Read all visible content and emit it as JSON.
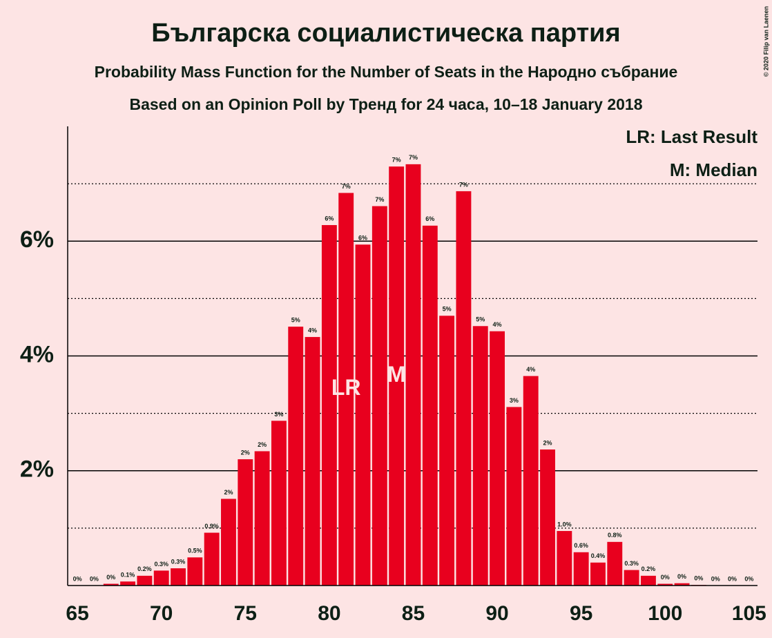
{
  "chart_data": {
    "type": "bar",
    "title": "Българска социалистическа партия",
    "subtitle": "Probability Mass Function for the Number of Seats in the Народно събрание",
    "subtitle2": "Based on an Opinion Poll by Тренд for 24 часа, 10–18 January 2018",
    "copyright": "© 2020 Filip van Laenen",
    "legend": [
      "LR: Last Result",
      "M: Median"
    ],
    "legend_position": "top-right",
    "annotations": [
      {
        "x": 81,
        "text": "LR"
      },
      {
        "x": 84,
        "text": "M"
      }
    ],
    "x": [
      65,
      66,
      67,
      68,
      69,
      70,
      71,
      72,
      73,
      74,
      75,
      76,
      77,
      78,
      79,
      80,
      81,
      82,
      83,
      84,
      85,
      86,
      87,
      88,
      89,
      90,
      91,
      92,
      93,
      94,
      95,
      96,
      97,
      98,
      99,
      100,
      101,
      102,
      103,
      104,
      105
    ],
    "values": [
      0,
      0,
      0.03,
      0.07,
      0.17,
      0.26,
      0.3,
      0.49,
      0.92,
      1.51,
      2.2,
      2.34,
      2.87,
      4.51,
      4.33,
      6.28,
      6.84,
      5.94,
      6.61,
      7.3,
      7.34,
      6.27,
      4.7,
      6.87,
      4.52,
      4.43,
      3.11,
      3.65,
      2.37,
      0.95,
      0.58,
      0.4,
      0.76,
      0.27,
      0.17,
      0.03,
      0.04,
      0.01,
      0,
      0,
      0
    ],
    "value_labels": [
      "0%",
      "0%",
      "0%",
      "0.1%",
      "0.2%",
      "0.3%",
      "0.3%",
      "0.5%",
      "0.9%",
      "2%",
      "2%",
      "2%",
      "3%",
      "5%",
      "4%",
      "6%",
      "7%",
      "6%",
      "7%",
      "7%",
      "7%",
      "6%",
      "5%",
      "7%",
      "5%",
      "4%",
      "3%",
      "4%",
      "2%",
      "1.0%",
      "0.6%",
      "0.4%",
      "0.8%",
      "0.3%",
      "0.2%",
      "0%",
      "0%",
      "0%",
      "0%",
      "0%",
      "0%"
    ],
    "color": "#e8001e",
    "xlim": [
      64.42,
      105.5
    ],
    "xticks": [
      65,
      70,
      75,
      80,
      85,
      90,
      95,
      100,
      105
    ],
    "ylim": [
      0,
      8
    ],
    "yticks": [
      {
        "value": 2,
        "label": "2%"
      },
      {
        "value": 4,
        "label": "4%"
      },
      {
        "value": 6,
        "label": "6%"
      }
    ],
    "minor_grid": [
      1,
      3,
      5,
      7
    ],
    "grid": true
  }
}
